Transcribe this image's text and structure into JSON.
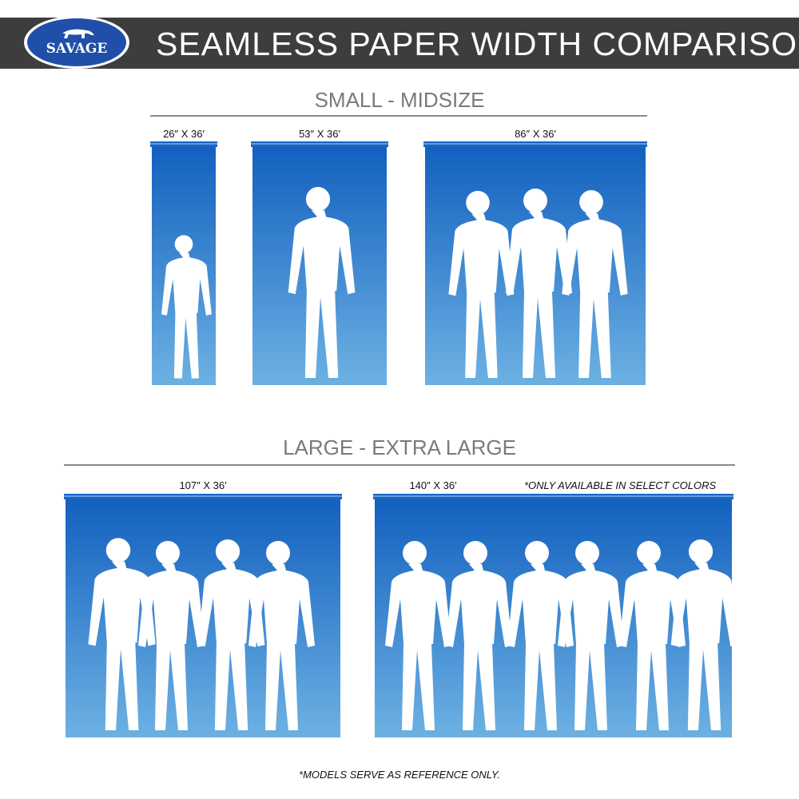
{
  "header": {
    "title": "SEAMLESS PAPER WIDTH COMPARISON",
    "logo_text": "SAVAGE",
    "bar_color": "#3d3d3f",
    "logo_color": "#1f4fa8"
  },
  "sections": [
    {
      "title": "SMALL - MIDSIZE",
      "panels": [
        {
          "label": "26″ X 36′",
          "people": 1
        },
        {
          "label": "53″ X 36′",
          "people": 1
        },
        {
          "label": "86″ X 36′",
          "people": 3
        }
      ]
    },
    {
      "title": "LARGE - EXTRA LARGE",
      "panels": [
        {
          "label": "107″ X 36′",
          "people": 4
        },
        {
          "label": "140″ X 36′",
          "people": 6,
          "note": "*ONLY AVAILABLE IN SELECT COLORS"
        }
      ]
    }
  ],
  "paper_gradient": {
    "top": "#1260bf",
    "bottom": "#6db1e3"
  },
  "footer": "*MODELS SERVE AS REFERENCE ONLY."
}
